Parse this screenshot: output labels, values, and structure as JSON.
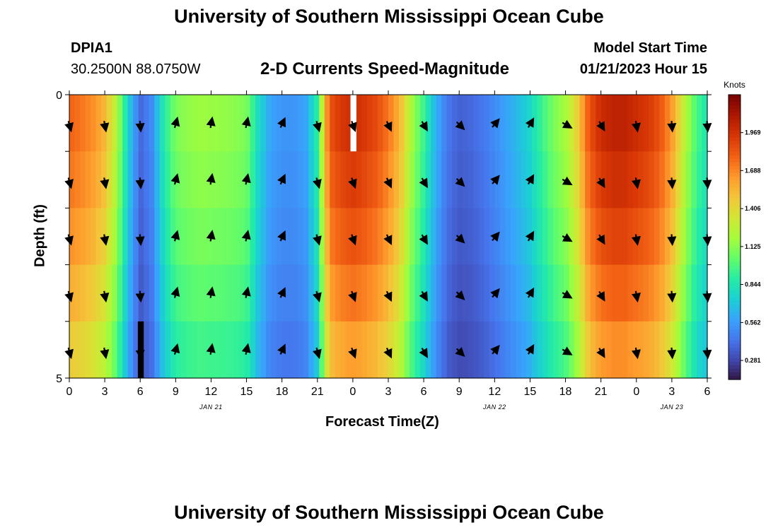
{
  "page": {
    "title_top": "University of Southern Mississippi Ocean Cube",
    "title_bottom": "University of Southern Mississippi Ocean Cube",
    "station_id": "DPIA1",
    "coords": "30.2500N  88.0750W",
    "plot_title": "2-D Currents Speed-Magnitude",
    "model_start_label": "Model Start Time",
    "model_start_value": "01/21/2023 Hour 15"
  },
  "chart_data": {
    "type": "heatmap",
    "title": "2-D Currents Speed-Magnitude",
    "xlabel": "Forecast Time(Z)",
    "ylabel": "Depth (ft)",
    "x_tick_labels": [
      "0",
      "3",
      "6",
      "9",
      "12",
      "15",
      "18",
      "21",
      "0",
      "3",
      "6",
      "9",
      "12",
      "15",
      "18",
      "21",
      "0",
      "3",
      "6"
    ],
    "x_tick_hours": [
      0,
      3,
      6,
      9,
      12,
      15,
      18,
      21,
      24,
      27,
      30,
      33,
      36,
      39,
      42,
      45,
      48,
      51,
      54
    ],
    "x_range_hours": [
      0,
      54
    ],
    "date_labels": [
      {
        "label": "JAN 21",
        "hour": 12
      },
      {
        "label": "JAN 22",
        "hour": 36
      },
      {
        "label": "JAN 23",
        "hour": 51
      }
    ],
    "y_tick_labels": [
      "0",
      "5"
    ],
    "y_range": [
      0,
      5
    ],
    "depth_rows": 5,
    "colorbar": {
      "unit": "Knots",
      "min": 0.14,
      "max": 2.25,
      "tick_labels": [
        "1.969",
        "1.688",
        "1.406",
        "1.125",
        "0.844",
        "0.562",
        "0.281"
      ],
      "tick_values": [
        1.969,
        1.688,
        1.406,
        1.125,
        0.844,
        0.562,
        0.281
      ],
      "colors": [
        "#30123b",
        "#4145ab",
        "#4675ed",
        "#39a2fc",
        "#1bcfd4",
        "#24eca6",
        "#61fc6c",
        "#a4fc3b",
        "#d1e834",
        "#f3c63a",
        "#fe9b2d",
        "#f36315",
        "#d93806",
        "#b11901",
        "#7a0402"
      ]
    },
    "speed_profile": {
      "hours": [
        0,
        1,
        2,
        3,
        4,
        5,
        6,
        7,
        8,
        9,
        10,
        11,
        12,
        13,
        14,
        15,
        16,
        17,
        18,
        19,
        20,
        21,
        22,
        23,
        24,
        25,
        26,
        27,
        28,
        29,
        30,
        31,
        32,
        33,
        34,
        35,
        36,
        37,
        38,
        39,
        40,
        41,
        42,
        43,
        44,
        45,
        46,
        47,
        48,
        49,
        50,
        51,
        52,
        53,
        54
      ],
      "values": [
        1.8,
        1.75,
        1.68,
        1.55,
        1.25,
        0.75,
        0.4,
        0.52,
        0.88,
        1.1,
        1.15,
        1.18,
        1.17,
        1.16,
        1.14,
        1.1,
        0.8,
        0.6,
        0.55,
        0.55,
        0.6,
        0.9,
        1.85,
        1.95,
        2.0,
        1.95,
        1.88,
        1.75,
        1.55,
        1.2,
        0.95,
        0.65,
        0.45,
        0.38,
        0.4,
        0.45,
        0.52,
        0.6,
        0.68,
        0.78,
        0.95,
        1.1,
        1.2,
        1.45,
        1.85,
        2.0,
        2.05,
        2.05,
        2.0,
        1.95,
        1.85,
        1.65,
        1.3,
        1.0,
        0.85
      ]
    },
    "depth_factors": [
      1.0,
      0.97,
      0.93,
      0.88,
      0.82
    ],
    "vectors": {
      "hours": [
        0,
        3,
        6,
        9,
        12,
        15,
        18,
        21,
        24,
        27,
        30,
        33,
        36,
        39,
        42,
        45,
        48,
        51,
        54
      ],
      "directions_deg": [
        165,
        170,
        175,
        15,
        10,
        12,
        25,
        165,
        160,
        155,
        150,
        135,
        40,
        30,
        120,
        150,
        170,
        175,
        175
      ]
    },
    "gaps": [
      {
        "hour_start": 23.8,
        "hour_end": 24.3,
        "row": 0,
        "color": "#ffffff"
      },
      {
        "hour_start": 5.8,
        "hour_end": 6.3,
        "row": 4,
        "color": "#000000"
      }
    ]
  }
}
